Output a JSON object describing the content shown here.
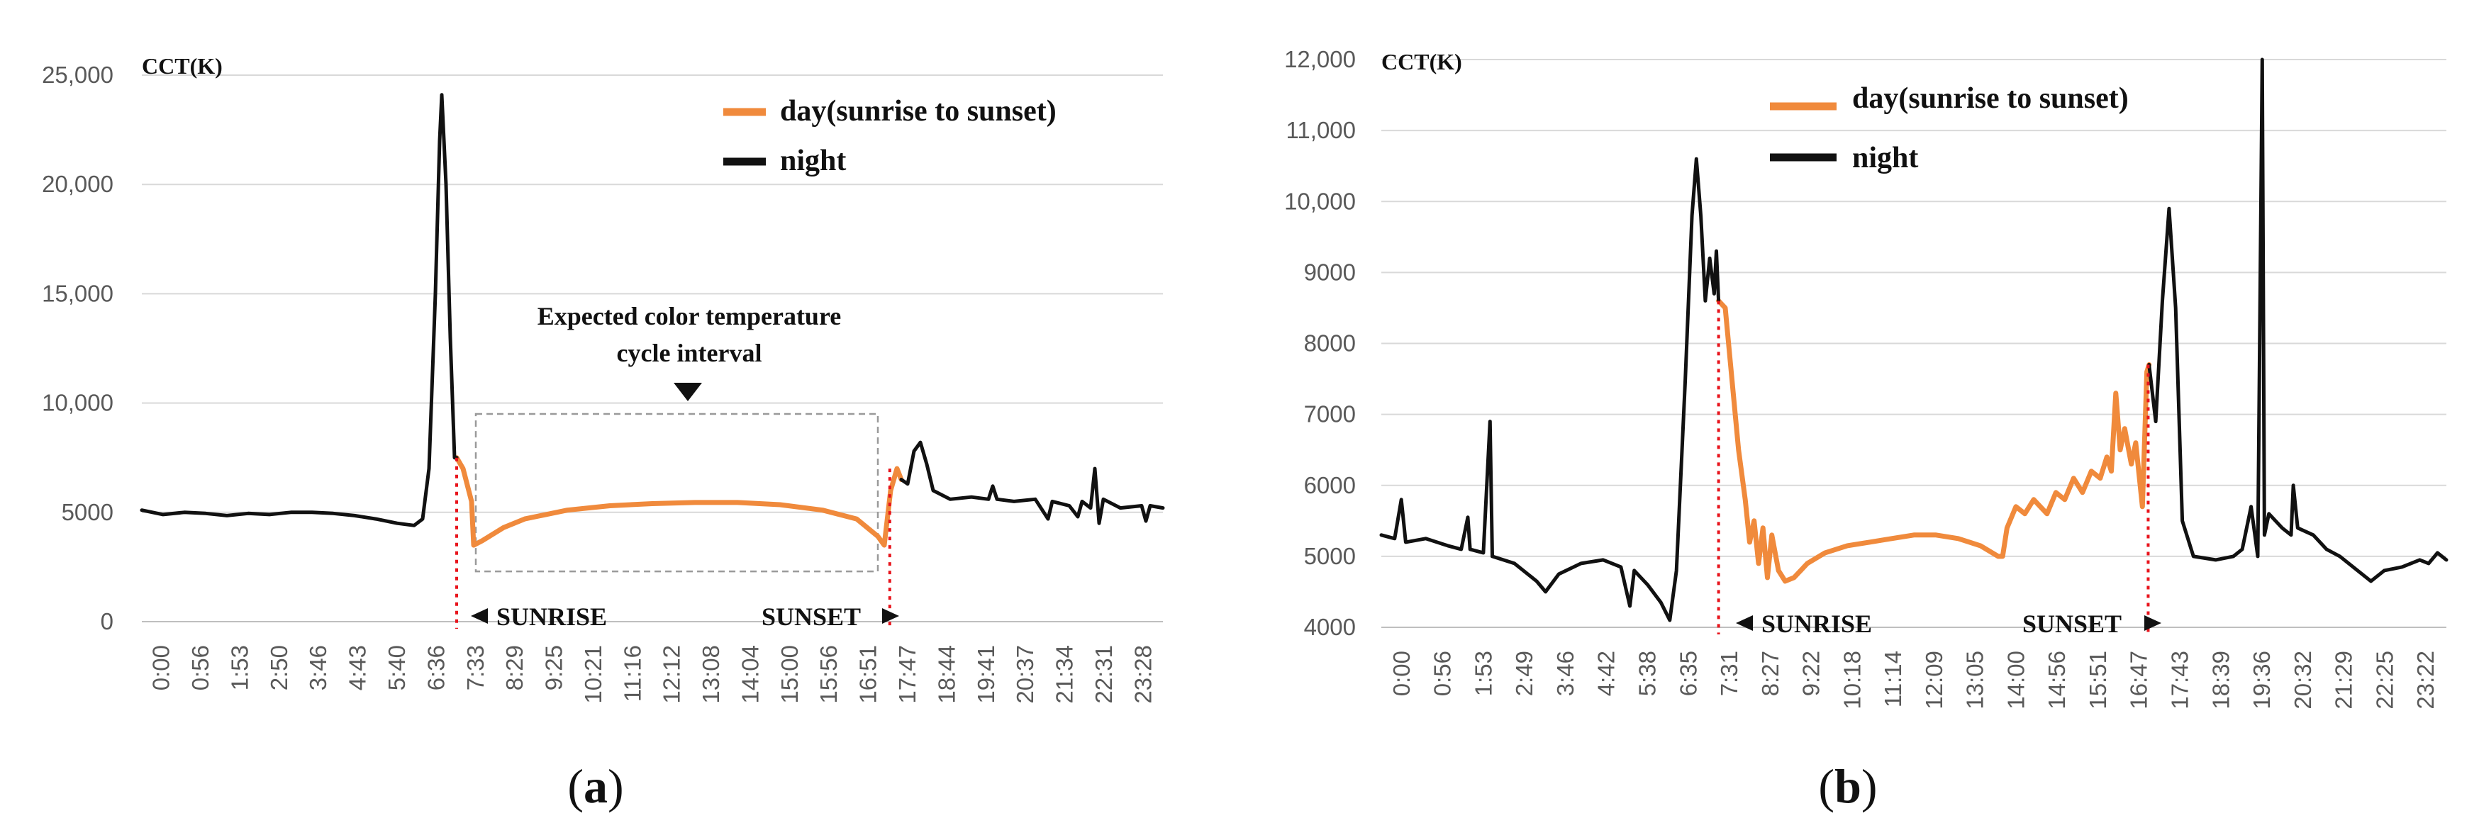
{
  "chart_data": [
    {
      "type": "line",
      "panel_label": "a",
      "ylabel": "CCT(K)",
      "ylim": [
        0,
        25000
      ],
      "y_ticks": [
        "0",
        "5000",
        "10,000",
        "15,000",
        "20,000",
        "25,000"
      ],
      "x_ticks": [
        "0:00",
        "0:56",
        "1:53",
        "2:50",
        "3:46",
        "4:43",
        "5:40",
        "6:36",
        "7:33",
        "8:29",
        "9:25",
        "10:21",
        "11:16",
        "12:12",
        "13:08",
        "14:04",
        "15:00",
        "15:56",
        "16:51",
        "17:47",
        "18:44",
        "19:41",
        "20:37",
        "21:34",
        "22:31",
        "23:28"
      ],
      "grid": true,
      "legend_position": "top-right",
      "series": [
        {
          "name": "day(sunrise to sunset)",
          "color": "#f08a3c",
          "points": [
            [
              7.4,
              7500
            ],
            [
              7.55,
              7000
            ],
            [
              7.75,
              5500
            ],
            [
              7.8,
              3500
            ],
            [
              8.0,
              3700
            ],
            [
              8.5,
              4300
            ],
            [
              9.0,
              4700
            ],
            [
              10.0,
              5100
            ],
            [
              11.0,
              5300
            ],
            [
              12.0,
              5400
            ],
            [
              13.0,
              5450
            ],
            [
              14.0,
              5450
            ],
            [
              15.0,
              5350
            ],
            [
              16.0,
              5100
            ],
            [
              16.8,
              4700
            ],
            [
              17.3,
              3900
            ],
            [
              17.45,
              3500
            ],
            [
              17.6,
              6000
            ],
            [
              17.75,
              7000
            ],
            [
              17.85,
              6500
            ]
          ]
        },
        {
          "name": "night",
          "color": "#111111",
          "points": [
            [
              0.0,
              5100
            ],
            [
              0.5,
              4900
            ],
            [
              1.0,
              5000
            ],
            [
              1.5,
              4950
            ],
            [
              2.0,
              4850
            ],
            [
              2.5,
              4950
            ],
            [
              3.0,
              4900
            ],
            [
              3.5,
              5000
            ],
            [
              4.0,
              5000
            ],
            [
              4.5,
              4950
            ],
            [
              5.0,
              4850
            ],
            [
              5.5,
              4700
            ],
            [
              6.0,
              4500
            ],
            [
              6.4,
              4400
            ],
            [
              6.6,
              4700
            ],
            [
              6.75,
              7000
            ],
            [
              6.9,
              15000
            ],
            [
              7.0,
              22000
            ],
            [
              7.05,
              24100
            ],
            [
              7.15,
              20000
            ],
            [
              7.25,
              13000
            ],
            [
              7.35,
              7500
            ],
            [
              7.4,
              7500
            ]
          ]
        },
        {
          "name": "night",
          "color": "#111111",
          "points": [
            [
              17.85,
              6500
            ],
            [
              18.0,
              6300
            ],
            [
              18.15,
              7800
            ],
            [
              18.3,
              8200
            ],
            [
              18.45,
              7200
            ],
            [
              18.6,
              6000
            ],
            [
              19.0,
              5600
            ],
            [
              19.5,
              5700
            ],
            [
              19.9,
              5600
            ],
            [
              20.0,
              6200
            ],
            [
              20.1,
              5600
            ],
            [
              20.5,
              5500
            ],
            [
              21.0,
              5600
            ],
            [
              21.3,
              4700
            ],
            [
              21.4,
              5500
            ],
            [
              21.8,
              5300
            ],
            [
              22.0,
              4800
            ],
            [
              22.1,
              5500
            ],
            [
              22.3,
              5200
            ],
            [
              22.4,
              7000
            ],
            [
              22.5,
              4500
            ],
            [
              22.6,
              5600
            ],
            [
              23.0,
              5200
            ],
            [
              23.5,
              5300
            ],
            [
              23.6,
              4600
            ],
            [
              23.7,
              5300
            ],
            [
              24.0,
              5200
            ]
          ]
        }
      ],
      "annotations": {
        "box_label_line1": "Expected color temperature",
        "box_label_line2": "cycle interval",
        "sunrise": "SUNRISE",
        "sunset": "SUNSET"
      },
      "sunrise_time": 7.4,
      "sunset_time": 17.58,
      "box": {
        "x_start": 7.85,
        "x_end": 17.3,
        "y_low": 2300,
        "y_high": 9500
      }
    },
    {
      "type": "line",
      "panel_label": "b",
      "ylabel": "CCT(K)",
      "ylim": [
        4000,
        12000
      ],
      "y_ticks": [
        "4000",
        "5000",
        "6000",
        "7000",
        "8000",
        "9000",
        "10,000",
        "11,000",
        "12,000"
      ],
      "x_ticks": [
        "0:00",
        "0:56",
        "1:53",
        "2:49",
        "3:46",
        "4:42",
        "5:38",
        "6:35",
        "7:31",
        "8:27",
        "9:22",
        "10:18",
        "11:14",
        "12:09",
        "13:05",
        "14:00",
        "14:56",
        "15:51",
        "16:47",
        "17:43",
        "18:39",
        "19:36",
        "20:32",
        "21:29",
        "22:25",
        "23:22"
      ],
      "grid": true,
      "legend_position": "top-center",
      "series": [
        {
          "name": "day(sunrise to sunset)",
          "color": "#f08a3c",
          "points": [
            [
              7.6,
              8600
            ],
            [
              7.75,
              8500
            ],
            [
              7.9,
              7500
            ],
            [
              8.05,
              6500
            ],
            [
              8.2,
              5800
            ],
            [
              8.3,
              5200
            ],
            [
              8.4,
              5500
            ],
            [
              8.5,
              4900
            ],
            [
              8.6,
              5400
            ],
            [
              8.7,
              4700
            ],
            [
              8.8,
              5300
            ],
            [
              8.95,
              4800
            ],
            [
              9.1,
              4650
            ],
            [
              9.3,
              4700
            ],
            [
              9.6,
              4900
            ],
            [
              10.0,
              5050
            ],
            [
              10.5,
              5150
            ],
            [
              11.0,
              5200
            ],
            [
              11.5,
              5250
            ],
            [
              12.0,
              5300
            ],
            [
              12.5,
              5300
            ],
            [
              13.0,
              5250
            ],
            [
              13.5,
              5150
            ],
            [
              13.9,
              5000
            ],
            [
              14.0,
              5000
            ],
            [
              14.1,
              5400
            ],
            [
              14.3,
              5700
            ],
            [
              14.5,
              5600
            ],
            [
              14.7,
              5800
            ],
            [
              15.0,
              5600
            ],
            [
              15.2,
              5900
            ],
            [
              15.4,
              5800
            ],
            [
              15.6,
              6100
            ],
            [
              15.8,
              5900
            ],
            [
              16.0,
              6200
            ],
            [
              16.2,
              6100
            ],
            [
              16.35,
              6400
            ],
            [
              16.45,
              6200
            ],
            [
              16.55,
              7300
            ],
            [
              16.65,
              6500
            ],
            [
              16.75,
              6800
            ],
            [
              16.9,
              6300
            ],
            [
              17.0,
              6600
            ],
            [
              17.15,
              5700
            ],
            [
              17.25,
              7600
            ],
            [
              17.3,
              7700
            ]
          ]
        },
        {
          "name": "night",
          "color": "#111111",
          "points": [
            [
              0.0,
              5300
            ],
            [
              0.3,
              5250
            ],
            [
              0.45,
              5800
            ],
            [
              0.55,
              5200
            ],
            [
              1.0,
              5250
            ],
            [
              1.5,
              5150
            ],
            [
              1.8,
              5100
            ],
            [
              1.95,
              5550
            ],
            [
              2.0,
              5100
            ],
            [
              2.3,
              5050
            ],
            [
              2.45,
              6900
            ],
            [
              2.5,
              5000
            ],
            [
              3.0,
              4900
            ],
            [
              3.5,
              4650
            ],
            [
              3.7,
              4500
            ],
            [
              4.0,
              4750
            ],
            [
              4.5,
              4900
            ],
            [
              5.0,
              4950
            ],
            [
              5.4,
              4850
            ],
            [
              5.6,
              4300
            ],
            [
              5.7,
              4800
            ],
            [
              6.0,
              4600
            ],
            [
              6.3,
              4350
            ],
            [
              6.5,
              4100
            ],
            [
              6.65,
              4800
            ],
            [
              6.85,
              7500
            ],
            [
              7.0,
              9800
            ],
            [
              7.1,
              10600
            ],
            [
              7.2,
              9800
            ],
            [
              7.3,
              8600
            ],
            [
              7.4,
              9200
            ],
            [
              7.5,
              8700
            ],
            [
              7.55,
              9300
            ],
            [
              7.6,
              8600
            ]
          ]
        },
        {
          "name": "night",
          "color": "#111111",
          "points": [
            [
              17.3,
              7700
            ],
            [
              17.45,
              6900
            ],
            [
              17.6,
              8600
            ],
            [
              17.75,
              9900
            ],
            [
              17.9,
              8500
            ],
            [
              18.05,
              5500
            ],
            [
              18.3,
              5000
            ],
            [
              18.8,
              4950
            ],
            [
              19.2,
              5000
            ],
            [
              19.4,
              5100
            ],
            [
              19.6,
              5700
            ],
            [
              19.75,
              5000
            ],
            [
              19.85,
              12000
            ],
            [
              19.9,
              5300
            ],
            [
              20.0,
              5600
            ],
            [
              20.3,
              5400
            ],
            [
              20.5,
              5300
            ],
            [
              20.55,
              6000
            ],
            [
              20.65,
              5400
            ],
            [
              21.0,
              5300
            ],
            [
              21.3,
              5100
            ],
            [
              21.6,
              5000
            ],
            [
              22.0,
              4800
            ],
            [
              22.3,
              4650
            ],
            [
              22.6,
              4800
            ],
            [
              23.0,
              4850
            ],
            [
              23.4,
              4950
            ],
            [
              23.6,
              4900
            ],
            [
              23.8,
              5050
            ],
            [
              24.0,
              4950
            ]
          ]
        }
      ],
      "annotations": {
        "sunrise": "SUNRISE",
        "sunset": "SUNSET"
      },
      "sunrise_time": 7.6,
      "sunset_time": 17.28
    }
  ]
}
